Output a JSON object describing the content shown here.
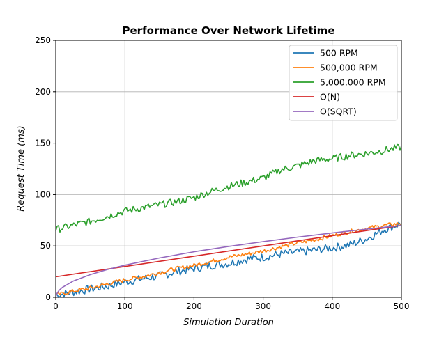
{
  "chart_data": {
    "type": "line",
    "title": "Performance Over Network Lifetime",
    "xlabel": "Simulation Duration",
    "ylabel": "Request Time (ms)",
    "xlim": [
      0,
      500
    ],
    "ylim": [
      0,
      250
    ],
    "xticks": [
      0,
      100,
      200,
      300,
      400,
      500
    ],
    "yticks": [
      0,
      50,
      100,
      150,
      200,
      250
    ],
    "grid": true,
    "legend_position": "top-right",
    "series": [
      {
        "name": "500 RPM",
        "color": "#1f77b4",
        "x": [
          0,
          25,
          50,
          75,
          100,
          125,
          150,
          175,
          200,
          225,
          250,
          275,
          300,
          325,
          350,
          375,
          400,
          425,
          450,
          475,
          500
        ],
        "y": [
          2,
          5,
          8,
          11,
          15,
          18,
          21,
          25,
          28,
          31,
          33,
          37,
          39,
          42,
          44,
          46,
          48,
          51,
          57,
          66,
          72
        ],
        "noise": 4
      },
      {
        "name": "500,000 RPM",
        "color": "#ff7f0e",
        "x": [
          0,
          25,
          50,
          75,
          100,
          125,
          150,
          175,
          200,
          225,
          250,
          275,
          300,
          325,
          350,
          375,
          400,
          425,
          450,
          475,
          500
        ],
        "y": [
          2,
          6,
          9,
          13,
          17,
          20,
          24,
          28,
          31,
          35,
          39,
          42,
          45,
          49,
          53,
          56,
          60,
          64,
          67,
          70,
          72
        ],
        "noise": 2
      },
      {
        "name": "5,000,000 RPM",
        "color": "#2ca02c",
        "x": [
          0,
          25,
          50,
          75,
          100,
          125,
          150,
          175,
          200,
          225,
          250,
          275,
          300,
          325,
          350,
          375,
          400,
          425,
          450,
          475,
          500
        ],
        "y": [
          66,
          70,
          74,
          79,
          84,
          87,
          90,
          93,
          97,
          103,
          108,
          112,
          116,
          124,
          128,
          133,
          135,
          138,
          140,
          143,
          146
        ],
        "noise": 3.5
      },
      {
        "name": "O(N)",
        "color": "#d62728",
        "x": [
          0,
          500
        ],
        "y": [
          20,
          70
        ]
      },
      {
        "name": "O(SQRT)",
        "color": "#9467bd",
        "x": [
          0,
          1,
          5,
          10,
          25,
          50,
          75,
          100,
          150,
          200,
          250,
          300,
          350,
          400,
          450,
          500
        ],
        "y": [
          0,
          3.1,
          7.0,
          9.9,
          15.7,
          22.1,
          27.1,
          31.3,
          38.3,
          44.3,
          49.5,
          54.2,
          58.6,
          62.6,
          66.4,
          70.0
        ]
      }
    ]
  }
}
